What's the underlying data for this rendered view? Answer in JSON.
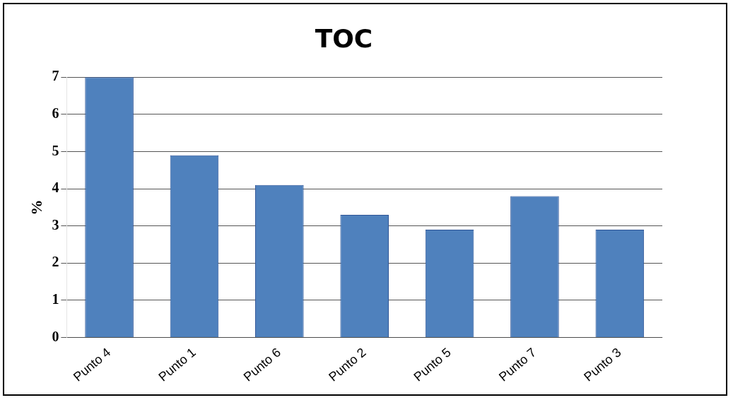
{
  "chart_data": {
    "type": "bar",
    "title": "TOC",
    "ylabel": "%",
    "categories": [
      "Punto 4",
      "Punto 1",
      "Punto 6",
      "Punto 2",
      "Punto 5",
      "Punto 7",
      "Punto 3"
    ],
    "values": [
      7.0,
      4.9,
      4.1,
      3.3,
      2.9,
      3.8,
      2.9
    ],
    "color": "#4f81bd",
    "ylim": [
      0,
      7
    ],
    "yticks": [
      0,
      1,
      2,
      3,
      4,
      5,
      6,
      7
    ],
    "grid": "y"
  }
}
